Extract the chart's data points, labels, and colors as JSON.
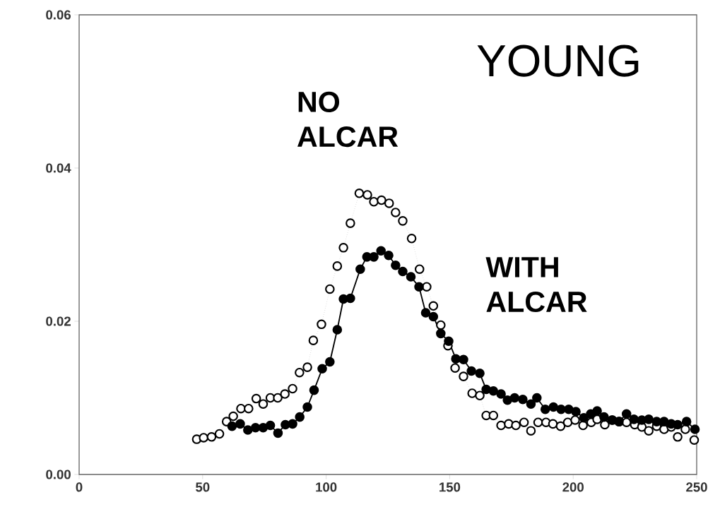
{
  "chart_data": {
    "type": "line",
    "annotations": [
      "YOUNG"
    ],
    "xlim": [
      0,
      250
    ],
    "xticks": [
      0,
      50,
      100,
      150,
      200,
      250
    ],
    "ylim": [
      0,
      0.06
    ],
    "yticks": [
      {
        "value": 0,
        "label": "0.00"
      },
      {
        "value": 0.02,
        "label": "0.02"
      },
      {
        "value": 0.04,
        "label": "0.04"
      },
      {
        "value": 0.06,
        "label": "0.06"
      }
    ],
    "grid": false,
    "legend": false,
    "marker": "circle",
    "series": [
      {
        "name": "NO ALCAR",
        "color": "#000000",
        "line_style": "dotted",
        "x": [
          47.6,
          50.4,
          53.6,
          56.8,
          59.7,
          62.4,
          65.5,
          68.6,
          71.7,
          74.5,
          77.4,
          80.4,
          83.3,
          86.4,
          89.2,
          92.4,
          94.8,
          98.1,
          101.5,
          104.5,
          107.0,
          109.8,
          113.4,
          116.7,
          119.3,
          122.4,
          125.5,
          128.1,
          131.0,
          134.6,
          137.8,
          140.7,
          143.4,
          146.4,
          149.3,
          152.2,
          155.6,
          159.1,
          162.2,
          164.8,
          167.7,
          170.8,
          173.9,
          176.8,
          180.1,
          182.9,
          185.8,
          189.0,
          191.8,
          194.9,
          197.8,
          200.8,
          204.0,
          207.3,
          209.7,
          212.8,
          215.9,
          218.7,
          221.6,
          224.9,
          227.8,
          230.6,
          233.8,
          236.8,
          239.7,
          242.3,
          245.4,
          249.0
        ],
        "values": [
          0.0046,
          0.0048,
          0.0049,
          0.0053,
          0.0069,
          0.0076,
          0.0086,
          0.0086,
          0.0099,
          0.0092,
          0.01,
          0.01,
          0.0105,
          0.0112,
          0.0133,
          0.014,
          0.0175,
          0.0196,
          0.0242,
          0.0272,
          0.0296,
          0.0328,
          0.0367,
          0.0365,
          0.0356,
          0.0358,
          0.0354,
          0.0342,
          0.0331,
          0.0308,
          0.0268,
          0.0245,
          0.022,
          0.0195,
          0.0168,
          0.0139,
          0.0128,
          0.0106,
          0.0103,
          0.0077,
          0.0077,
          0.0064,
          0.0066,
          0.0064,
          0.0068,
          0.0057,
          0.0068,
          0.0068,
          0.0066,
          0.0063,
          0.0068,
          0.0071,
          0.0064,
          0.0068,
          0.0072,
          0.0065,
          0.0071,
          0.0069,
          0.0068,
          0.0065,
          0.0062,
          0.0057,
          0.0063,
          0.0059,
          0.0062,
          0.0049,
          0.0059,
          0.0045
        ]
      },
      {
        "name": "WITH ALCAR",
        "color": "#000000",
        "line_style": "solid",
        "x": [
          61.9,
          65.2,
          68.3,
          71.4,
          74.5,
          77.4,
          80.5,
          83.5,
          86.4,
          89.3,
          92.4,
          95.1,
          98.4,
          101.5,
          104.5,
          107.0,
          109.8,
          113.8,
          116.5,
          119.3,
          122.2,
          125.3,
          128.1,
          131.0,
          134.3,
          137.6,
          140.3,
          143.4,
          146.4,
          149.6,
          152.5,
          155.6,
          158.8,
          162.2,
          164.8,
          167.7,
          170.8,
          173.4,
          176.3,
          179.6,
          182.9,
          185.3,
          188.7,
          192.0,
          195.1,
          198.2,
          201.1,
          204.3,
          207.1,
          209.7,
          212.5,
          215.7,
          218.5,
          221.6,
          224.6,
          227.8,
          230.6,
          233.8,
          236.8,
          239.7,
          242.3,
          245.9,
          249.3
        ],
        "values": [
          0.0063,
          0.0066,
          0.0058,
          0.0061,
          0.0061,
          0.0064,
          0.0054,
          0.0065,
          0.0066,
          0.0075,
          0.0088,
          0.011,
          0.0138,
          0.0147,
          0.0189,
          0.0229,
          0.023,
          0.0268,
          0.0284,
          0.0284,
          0.0292,
          0.0286,
          0.0273,
          0.0265,
          0.0258,
          0.0245,
          0.0211,
          0.0206,
          0.0184,
          0.0174,
          0.0151,
          0.015,
          0.0135,
          0.0132,
          0.0111,
          0.0109,
          0.0105,
          0.0097,
          0.01,
          0.0098,
          0.0092,
          0.01,
          0.0085,
          0.0088,
          0.0085,
          0.0085,
          0.0082,
          0.0074,
          0.0079,
          0.0083,
          0.0075,
          0.0071,
          0.0069,
          0.0079,
          0.0072,
          0.0071,
          0.0072,
          0.0069,
          0.0069,
          0.0066,
          0.0065,
          0.0069,
          0.0059
        ]
      }
    ]
  }
}
